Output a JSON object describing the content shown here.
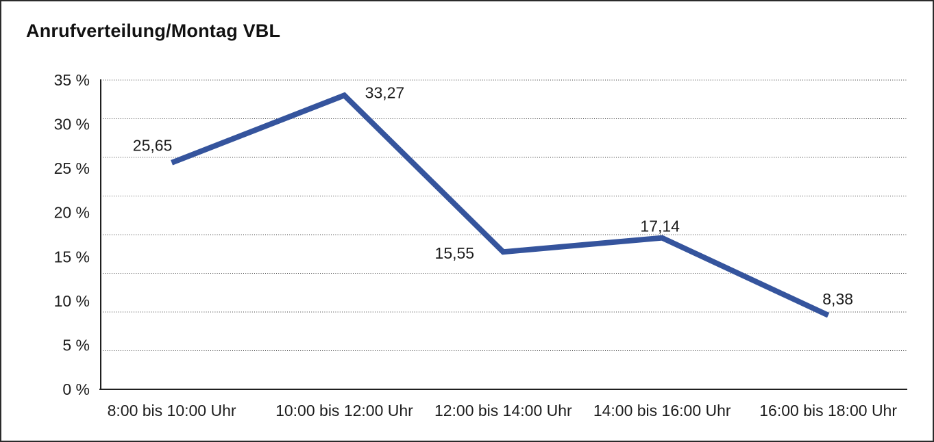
{
  "chart_data": {
    "type": "line",
    "title": "Anrufverteilung/Montag VBL",
    "categories": [
      "8:00 bis 10:00 Uhr",
      "10:00 bis 12:00 Uhr",
      "12:00 bis 14:00 Uhr",
      "14:00 bis 16:00 Uhr",
      "16:00 bis 18:00 Uhr"
    ],
    "values": [
      25.65,
      33.27,
      15.55,
      17.14,
      8.38
    ],
    "value_labels": [
      "25,65",
      "33,27",
      "15,55",
      "17,14",
      "8,38"
    ],
    "y_tick_values": [
      0,
      5,
      10,
      15,
      20,
      25,
      30,
      35
    ],
    "y_tick_labels": [
      "0 %",
      "5 %",
      "10 %",
      "15 %",
      "20 %",
      "25 %",
      "30 %",
      "35 %"
    ],
    "ylim": [
      0,
      35
    ],
    "xlabel": "",
    "ylabel": "",
    "grid": "horizontal-dotted",
    "gridline_divisions": 8,
    "legend": "none",
    "line_color": "#35549d",
    "axis_color": "#1f1f1f",
    "grid_color": "#3c3c3c",
    "text_color": "#1c1c1c"
  }
}
